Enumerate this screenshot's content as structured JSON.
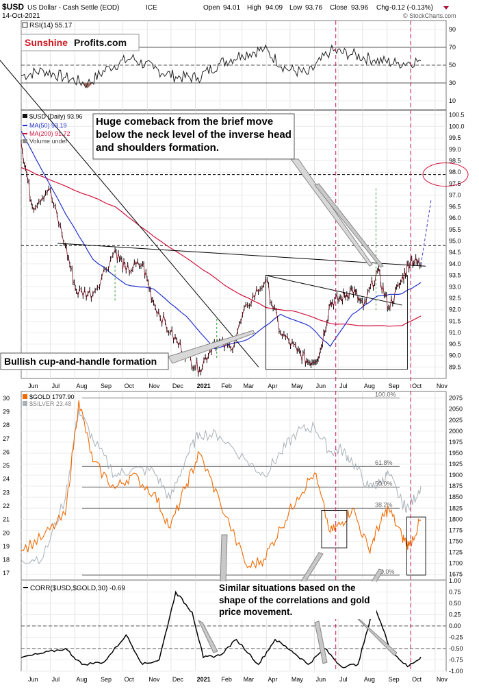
{
  "header": {
    "symbol": "$USD",
    "name": "US Dollar - Cash Settle (EOD)",
    "exchange": "ICE",
    "date": "14-Oct-2021",
    "open_label": "Open",
    "open": "94.01",
    "high_label": "High",
    "high": "94.09",
    "low_label": "Low",
    "low": "93.76",
    "close_label": "Close",
    "close": "93.96",
    "chg_label": "Chg",
    "chg": "-0.12 (-0.13%)",
    "watermark": "© StockCharts.com"
  },
  "brand": {
    "part1": "Sunshine",
    "part2": "Profits.com"
  },
  "colors": {
    "usd": "#111111",
    "ma50": "#1f2fd0",
    "ma200": "#d0103a",
    "gold": "#f06a00",
    "silver": "#a8b0b8",
    "guide": "#c2185b",
    "rsi_neg": "#9e6b60"
  },
  "chart_data": [
    {
      "type": "line",
      "panel": "rsi",
      "legend": "RSI(14) 55.17",
      "ylim": [
        0,
        100
      ],
      "y_ticks": [
        10,
        30,
        50,
        70,
        90
      ],
      "reference_lines": [
        30,
        50,
        70
      ],
      "x": [
        "2020-05-25",
        "2020-06-22",
        "2020-07-20",
        "2020-08-17",
        "2020-09-14",
        "2020-10-12",
        "2020-11-09",
        "2020-12-07",
        "2021-01-04",
        "2021-02-01",
        "2021-03-01",
        "2021-03-29",
        "2021-04-26",
        "2021-05-24",
        "2021-06-21",
        "2021-07-19",
        "2021-08-16",
        "2021-09-13",
        "2021-10-14"
      ],
      "values": [
        38,
        44,
        36,
        29,
        48,
        58,
        46,
        37,
        36,
        52,
        62,
        68,
        46,
        40,
        66,
        62,
        56,
        52,
        55
      ]
    },
    {
      "type": "line",
      "panel": "usd",
      "legend": [
        "$USD (Daily) 93.96",
        "MA(50) 93.19",
        "MA(200) 91.72",
        "Volume undef"
      ],
      "ylim": [
        89.0,
        100.7
      ],
      "y_ticks": [
        89.5,
        90.0,
        90.5,
        91.0,
        91.5,
        92.0,
        92.5,
        93.0,
        93.5,
        94.0,
        94.5,
        95.0,
        95.5,
        96.0,
        96.5,
        97.0,
        97.5,
        98.0,
        98.5,
        99.0,
        99.5,
        100.0,
        100.5
      ],
      "series": [
        {
          "name": "$USD (Daily) 93.96",
          "x": [
            "2020-05-25",
            "2020-06-08",
            "2020-06-29",
            "2020-07-20",
            "2020-08-03",
            "2020-08-24",
            "2020-09-21",
            "2020-10-05",
            "2020-10-26",
            "2020-11-09",
            "2020-11-30",
            "2020-12-21",
            "2021-01-06",
            "2021-01-25",
            "2021-02-15",
            "2021-03-08",
            "2021-03-31",
            "2021-04-19",
            "2021-05-10",
            "2021-05-25",
            "2021-06-07",
            "2021-06-21",
            "2021-07-05",
            "2021-07-19",
            "2021-08-02",
            "2021-08-20",
            "2021-09-03",
            "2021-09-20",
            "2021-10-01",
            "2021-10-14"
          ],
          "values": [
            99.3,
            96.5,
            97.3,
            94.8,
            92.8,
            92.7,
            94.6,
            93.7,
            94.0,
            92.3,
            91.0,
            90.0,
            89.4,
            90.6,
            90.3,
            92.2,
            93.3,
            91.0,
            90.2,
            89.7,
            90.0,
            92.3,
            92.5,
            92.9,
            92.1,
            93.7,
            92.1,
            93.3,
            94.2,
            93.96
          ]
        },
        {
          "name": "MA(50) 93.19",
          "x": [
            "2020-05-25",
            "2020-07-20",
            "2020-08-24",
            "2020-10-05",
            "2020-11-09",
            "2020-12-21",
            "2021-01-25",
            "2021-03-08",
            "2021-04-19",
            "2021-05-25",
            "2021-06-21",
            "2021-07-19",
            "2021-08-20",
            "2021-09-20",
            "2021-10-14"
          ],
          "values": [
            99.8,
            96.2,
            94.2,
            93.1,
            92.9,
            91.7,
            90.3,
            90.7,
            91.8,
            91.3,
            90.4,
            91.8,
            92.6,
            92.7,
            93.19
          ]
        },
        {
          "name": "MA(200) 91.72",
          "x": [
            "2020-05-25",
            "2020-07-20",
            "2020-09-21",
            "2020-11-09",
            "2021-01-04",
            "2021-02-15",
            "2021-03-31",
            "2021-05-10",
            "2021-06-21",
            "2021-08-02",
            "2021-09-20",
            "2021-10-14"
          ],
          "values": [
            98.2,
            97.4,
            96.5,
            95.2,
            93.9,
            92.9,
            92.1,
            91.9,
            91.4,
            91.3,
            91.3,
            91.72
          ]
        }
      ],
      "horizontal_lines": [
        94.8,
        97.9
      ],
      "annotations": [
        "Huge comeback from the brief move below the neck level of the inverse head and shoulders formation.",
        "Bullish cup-and-handle formation"
      ]
    },
    {
      "type": "line",
      "panel": "gold-silver",
      "legend": [
        "$GOLD 1797.90",
        "$SILVER 23.48"
      ],
      "y_left": {
        "label": "$SILVER",
        "ylim": [
          16.5,
          30.5
        ],
        "ticks": [
          17,
          18,
          19,
          20,
          21,
          22,
          23,
          24,
          25,
          26,
          27,
          28,
          29,
          30
        ]
      },
      "y_right": {
        "label": "$GOLD",
        "ylim": [
          1662,
          2090
        ],
        "ticks": [
          1675,
          1700,
          1725,
          1750,
          1775,
          1800,
          1825,
          1850,
          1875,
          1900,
          1925,
          1950,
          1975,
          2000,
          2025,
          2050,
          2075
        ]
      },
      "fib_levels": [
        {
          "label": "100.0%",
          "value": 2075
        },
        {
          "label": "61.8%",
          "value": 1920
        },
        {
          "label": "50.0%",
          "value": 1873
        },
        {
          "label": "38.2%",
          "value": 1825
        },
        {
          "label": "0.0%",
          "value": 1673
        }
      ],
      "series": [
        {
          "name": "$GOLD 1797.90",
          "x": [
            "2020-05-25",
            "2020-06-22",
            "2020-07-20",
            "2020-08-06",
            "2020-08-24",
            "2020-09-21",
            "2020-10-12",
            "2020-11-09",
            "2020-11-30",
            "2020-12-21",
            "2021-01-06",
            "2021-02-01",
            "2021-03-08",
            "2021-03-29",
            "2021-04-19",
            "2021-05-10",
            "2021-06-01",
            "2021-06-21",
            "2021-07-05",
            "2021-07-19",
            "2021-08-09",
            "2021-08-23",
            "2021-09-03",
            "2021-09-20",
            "2021-09-29",
            "2021-10-14"
          ],
          "values": [
            1730,
            1760,
            1810,
            2070,
            1930,
            1870,
            1900,
            1860,
            1780,
            1880,
            1950,
            1840,
            1690,
            1710,
            1780,
            1850,
            1905,
            1770,
            1790,
            1825,
            1730,
            1790,
            1825,
            1760,
            1740,
            1797.9
          ]
        },
        {
          "name": "$SILVER 23.48",
          "x": [
            "2020-05-25",
            "2020-06-22",
            "2020-07-20",
            "2020-08-06",
            "2020-08-24",
            "2020-09-21",
            "2020-10-12",
            "2020-11-09",
            "2020-11-30",
            "2020-12-21",
            "2021-01-06",
            "2021-02-01",
            "2021-03-08",
            "2021-03-29",
            "2021-04-19",
            "2021-05-10",
            "2021-06-01",
            "2021-06-21",
            "2021-07-05",
            "2021-07-19",
            "2021-08-09",
            "2021-08-23",
            "2021-09-03",
            "2021-09-20",
            "2021-09-29",
            "2021-10-14"
          ],
          "values": [
            18.0,
            18.2,
            22.6,
            29.2,
            26.9,
            24.3,
            24.7,
            24.6,
            22.5,
            25.7,
            27.4,
            27.2,
            25.3,
            24.3,
            25.9,
            27.5,
            27.9,
            26.0,
            26.2,
            25.3,
            23.3,
            23.7,
            24.4,
            22.2,
            21.8,
            23.48
          ]
        }
      ],
      "annotations": [
        "Similar situations based on the shape of the correlations and gold price movement."
      ]
    },
    {
      "type": "line",
      "panel": "correlation",
      "legend": "CORR($USD,$GOLD,30) -0.69",
      "ylim": [
        -1.0,
        1.0
      ],
      "y_ticks": [
        1.0,
        0.75,
        0.5,
        0.25,
        0.0,
        -0.25,
        -0.5,
        -0.75,
        -1.0
      ],
      "reference_lines": [
        0.0,
        -0.5
      ],
      "x": [
        "2020-05-25",
        "2020-06-22",
        "2020-07-20",
        "2020-08-10",
        "2020-09-07",
        "2020-10-05",
        "2020-10-26",
        "2020-11-16",
        "2020-12-07",
        "2020-12-28",
        "2021-01-11",
        "2021-02-01",
        "2021-02-22",
        "2021-03-22",
        "2021-04-12",
        "2021-05-03",
        "2021-05-24",
        "2021-06-14",
        "2021-07-05",
        "2021-07-26",
        "2021-08-16",
        "2021-09-06",
        "2021-09-27",
        "2021-10-14"
      ],
      "values": [
        -0.7,
        -0.6,
        -0.5,
        -0.85,
        -0.8,
        -0.2,
        -0.85,
        -0.75,
        0.75,
        0.3,
        -0.7,
        -0.65,
        -0.3,
        -0.85,
        -0.3,
        -0.55,
        -0.85,
        -0.5,
        -0.9,
        -0.85,
        0.45,
        -0.55,
        -0.9,
        -0.69
      ]
    }
  ],
  "x_axis": {
    "tick_labels": [
      "Jun",
      "Jul",
      "Aug",
      "Sep",
      "Oct",
      "Nov",
      "Dec",
      "2021",
      "Feb",
      "Mar",
      "Apr",
      "May",
      "Jun",
      "Jul",
      "Aug",
      "Sep",
      "Oct",
      "Nov"
    ],
    "tick_dates": [
      "2020-06-01",
      "2020-07-01",
      "2020-08-01",
      "2020-09-01",
      "2020-10-01",
      "2020-11-01",
      "2020-12-01",
      "2021-01-01",
      "2021-02-01",
      "2021-03-01",
      "2021-04-01",
      "2021-05-01",
      "2021-06-01",
      "2021-07-01",
      "2021-08-01",
      "2021-09-01",
      "2021-10-01",
      "2021-11-01"
    ]
  },
  "guides": {
    "vertical_dates": [
      "2021-06-28",
      "2021-10-01"
    ]
  }
}
